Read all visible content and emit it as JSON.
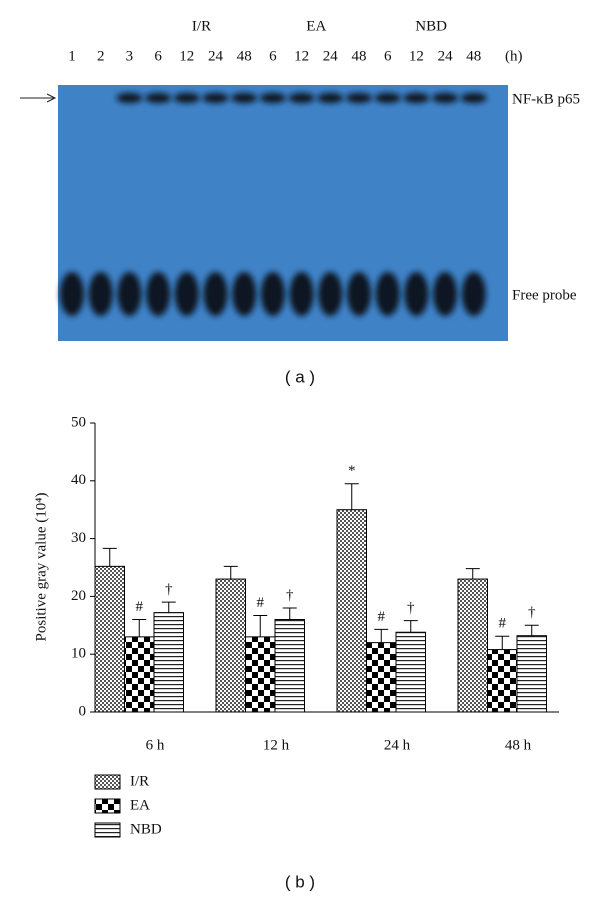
{
  "blot": {
    "group_labels": [
      "I/R",
      "EA",
      "NBD"
    ],
    "lanes": [
      "1",
      "2",
      "3",
      "6",
      "12",
      "24",
      "48",
      "6",
      "12",
      "24",
      "48",
      "6",
      "12",
      "24",
      "48"
    ],
    "unit": "(h)",
    "band_labels": [
      "NF-κB p65",
      "Free probe"
    ],
    "caption": "( a )"
  },
  "chart_data": {
    "type": "bar",
    "y_label": "Positive gray value (10⁴)",
    "categories": [
      "6 h",
      "12 h",
      "24 h",
      "48 h"
    ],
    "series": [
      {
        "name": "I/R",
        "pattern": "dots",
        "values": [
          25.2,
          23,
          35,
          23
        ],
        "errors": [
          3.1,
          2.2,
          4.5,
          1.8
        ],
        "annotations": [
          null,
          null,
          "*",
          null
        ]
      },
      {
        "name": "EA",
        "pattern": "checker",
        "values": [
          13,
          13,
          12,
          10.8
        ],
        "errors": [
          3,
          3.7,
          2.3,
          2.3
        ],
        "annotations": [
          "#",
          "#",
          "#",
          "#"
        ]
      },
      {
        "name": "NBD",
        "pattern": "hlines",
        "values": [
          17.2,
          16,
          13.8,
          13.2
        ],
        "errors": [
          1.8,
          2,
          2,
          1.8
        ],
        "annotations": [
          "†",
          "†",
          "†",
          "†"
        ]
      }
    ],
    "ylim": [
      0,
      50
    ],
    "yticks": [
      0,
      10,
      20,
      30,
      40,
      50
    ],
    "legend": "bottom-left",
    "caption": "( b )"
  }
}
